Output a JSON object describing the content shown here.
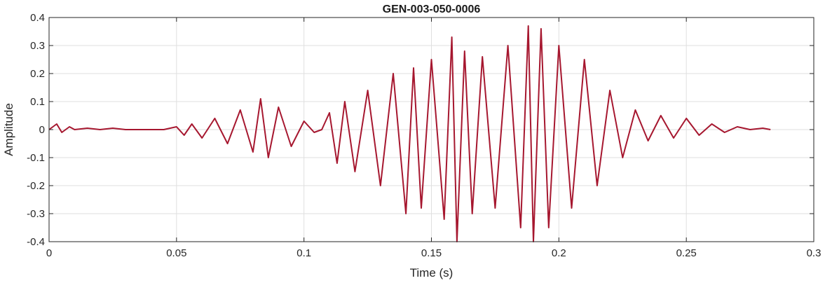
{
  "chart_data": {
    "type": "line",
    "title": "GEN-003-050-0006",
    "xlabel": "Time (s)",
    "ylabel": "Amplitude",
    "xlim": [
      0,
      0.3
    ],
    "ylim": [
      -0.4,
      0.4
    ],
    "grid": true,
    "line_color": "#a6172f",
    "x_ticks": [
      0,
      0.05,
      0.1,
      0.15,
      0.2,
      0.25,
      0.3
    ],
    "x_tick_labels": [
      "0",
      "0.05",
      "0.1",
      "0.15",
      "0.2",
      "0.25",
      "0.3"
    ],
    "y_ticks": [
      -0.4,
      -0.3,
      -0.2,
      -0.1,
      0,
      0.1,
      0.2,
      0.3,
      0.4
    ],
    "y_tick_labels": [
      "-0.4",
      "-0.3",
      "-0.2",
      "-0.1",
      "0",
      "0.1",
      "0.2",
      "0.3",
      "0.4"
    ],
    "series": [
      {
        "x": [
          0,
          0.003,
          0.005,
          0.008,
          0.01,
          0.015,
          0.02,
          0.025,
          0.03,
          0.035,
          0.04,
          0.045,
          0.05,
          0.053,
          0.056,
          0.06,
          0.065,
          0.07,
          0.075,
          0.08,
          0.083,
          0.086,
          0.09,
          0.095,
          0.1,
          0.104,
          0.107,
          0.11,
          0.113,
          0.116,
          0.12,
          0.125,
          0.13,
          0.135,
          0.14,
          0.143,
          0.146,
          0.15,
          0.155,
          0.158,
          0.16,
          0.163,
          0.166,
          0.17,
          0.175,
          0.18,
          0.185,
          0.188,
          0.19,
          0.193,
          0.196,
          0.2,
          0.205,
          0.21,
          0.215,
          0.22,
          0.225,
          0.23,
          0.235,
          0.24,
          0.245,
          0.25,
          0.255,
          0.26,
          0.265,
          0.27,
          0.275,
          0.28,
          0.283
        ],
        "y": [
          0.0,
          0.02,
          -0.01,
          0.01,
          0.0,
          0.005,
          0.0,
          0.005,
          0.0,
          0.0,
          0.0,
          0.0,
          0.01,
          -0.02,
          0.02,
          -0.03,
          0.04,
          -0.05,
          0.07,
          -0.08,
          0.11,
          -0.1,
          0.08,
          -0.06,
          0.03,
          -0.01,
          0.0,
          0.06,
          -0.12,
          0.1,
          -0.15,
          0.14,
          -0.2,
          0.2,
          -0.3,
          0.22,
          -0.28,
          0.25,
          -0.32,
          0.33,
          -0.4,
          0.28,
          -0.3,
          0.26,
          -0.28,
          0.3,
          -0.35,
          0.37,
          -0.4,
          0.36,
          -0.35,
          0.3,
          -0.28,
          0.25,
          -0.2,
          0.14,
          -0.1,
          0.07,
          -0.04,
          0.05,
          -0.03,
          0.04,
          -0.02,
          0.02,
          -0.01,
          0.01,
          0.0,
          0.005,
          0.0
        ]
      }
    ]
  }
}
